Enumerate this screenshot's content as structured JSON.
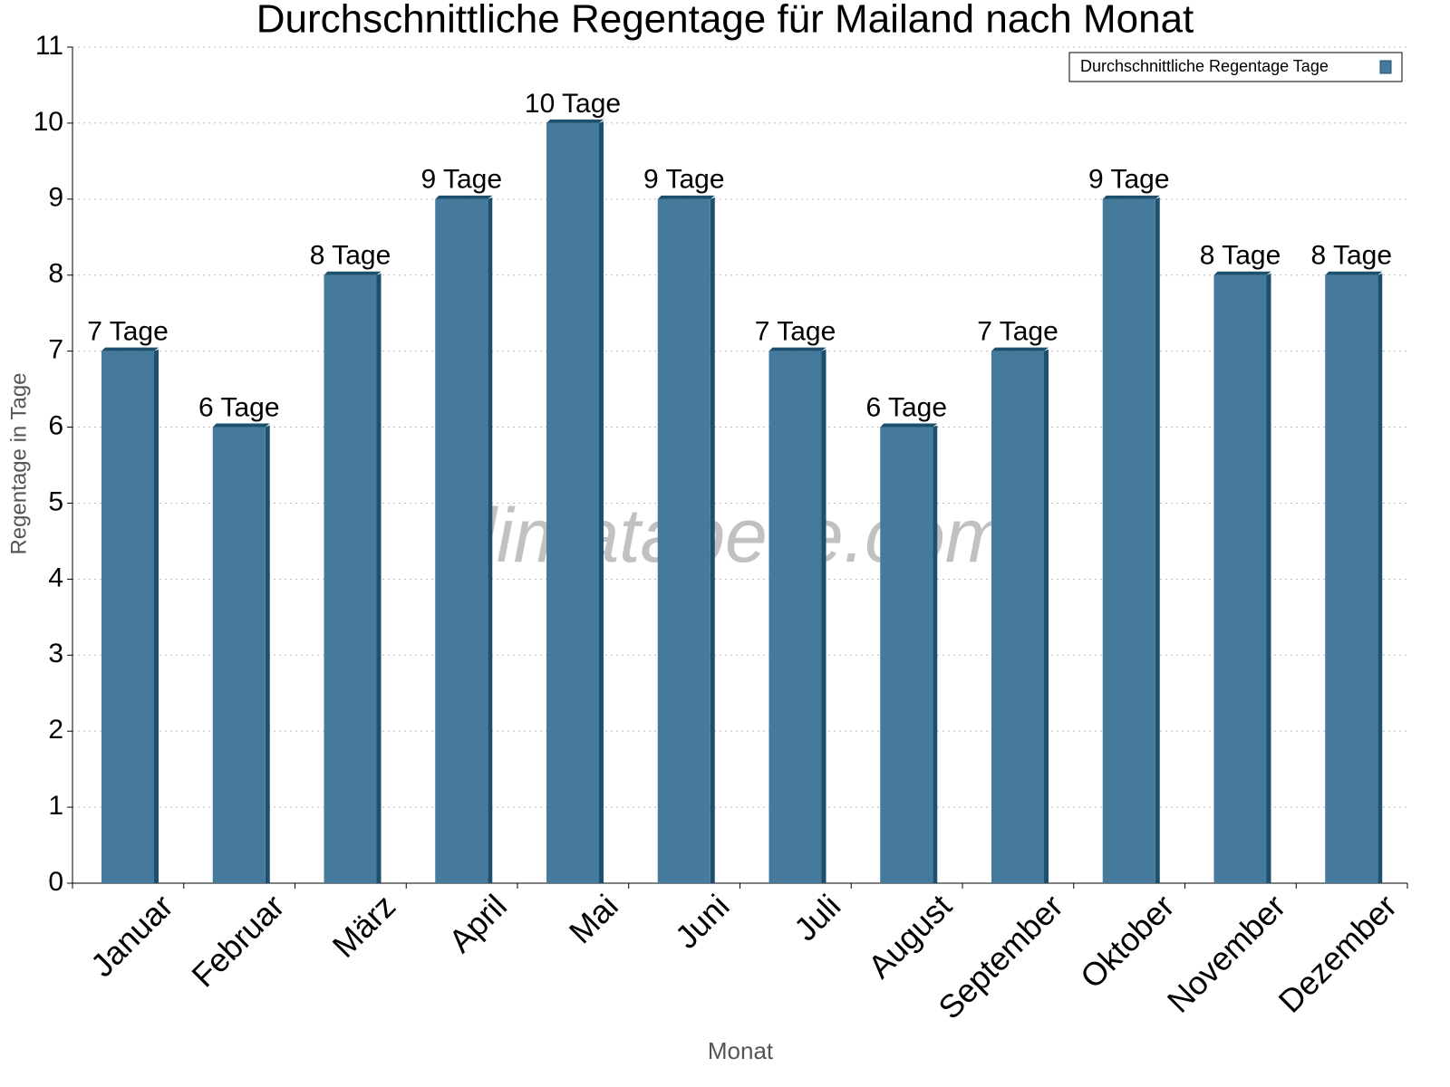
{
  "chart_data": {
    "type": "bar",
    "title": "Durchschnittliche Regentage für Mailand nach Monat",
    "x_label": "Monat",
    "y_label": "Regentage in Tage",
    "watermark": "klimatabelle.com",
    "categories": [
      "Januar",
      "Februar",
      "März",
      "April",
      "Mai",
      "Juni",
      "Juli",
      "August",
      "September",
      "Oktober",
      "November",
      "Dezember"
    ],
    "series": [
      {
        "name": "Durchschnittliche Regentage Tage",
        "color": "#467a9c",
        "values": [
          7,
          6,
          8,
          9,
          10,
          9,
          7,
          6,
          7,
          9,
          8,
          8
        ],
        "value_labels": [
          "7 Tage",
          "6 Tage",
          "8 Tage",
          "9 Tage",
          "10 Tage",
          "9 Tage",
          "7 Tage",
          "6 Tage",
          "7 Tage",
          "9 Tage",
          "8 Tage",
          "8 Tage"
        ]
      }
    ],
    "ylim": [
      0,
      11
    ],
    "yticks": [
      0,
      1,
      2,
      3,
      4,
      5,
      6,
      7,
      8,
      9,
      10,
      11
    ],
    "grid": true,
    "legend": "upper right"
  }
}
